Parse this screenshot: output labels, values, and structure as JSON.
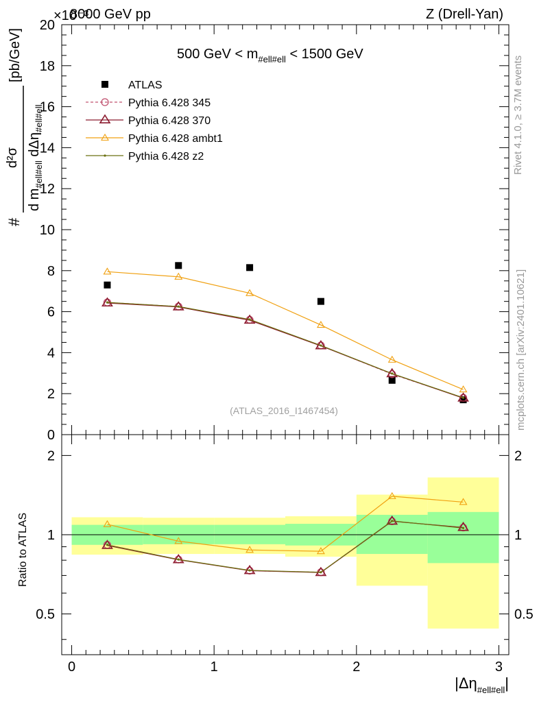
{
  "header": {
    "left": "8000 GeV pp",
    "exponent": "×10⁻³",
    "right": "Z (Drell-Yan)"
  },
  "side_labels": {
    "rivet": "Rivet 4.1.0, ≥ 3.7M events",
    "mcplots": "mcplots.cern.ch [arXiv:2401.10621]"
  },
  "main_panel": {
    "title_prefix": "500 GeV < m",
    "title_sub": "#ell#ell",
    "title_suffix": " < 1500 GeV",
    "watermark": "(ATLAS_2016_I1467454)",
    "ylabel_prefix": "#",
    "ylabel_suffix": "[pb/GeV]",
    "ylabel_num": "d²σ",
    "ylabel_den": "d m",
    "ylabel_den_sub": "#ell#ell",
    "ylabel_den_mid": " dΔη",
    "ylabel_den_sub2": "#ell#ell",
    "y_ticks": [
      "0",
      "2",
      "4",
      "6",
      "8",
      "10",
      "12",
      "14",
      "16",
      "18",
      "20"
    ]
  },
  "ratio_panel": {
    "ylabel": "Ratio to ATLAS",
    "y_ticks": [
      "0.5",
      "1",
      "2"
    ],
    "x_ticks": [
      "0",
      "1",
      "2",
      "3"
    ],
    "xlabel_main": "|Δη",
    "xlabel_sub": "#ell#ell",
    "xlabel_end": "|"
  },
  "legend": [
    {
      "label": "ATLAS"
    },
    {
      "label": "Pythia 6.428 345"
    },
    {
      "label": "Pythia 6.428 370"
    },
    {
      "label": "Pythia 6.428 ambt1"
    },
    {
      "label": "Pythia 6.428 z2"
    }
  ],
  "chart_data": {
    "type": "line",
    "x": [
      0.25,
      0.75,
      1.25,
      1.75,
      2.25,
      2.75
    ],
    "bin_edges": [
      0,
      0.5,
      1,
      1.5,
      2,
      2.5,
      3
    ],
    "xlim": [
      -0.07,
      3.07
    ],
    "ylim": [
      0,
      20
    ],
    "ratio_ylim": [
      0.35,
      2.4
    ],
    "series": [
      {
        "name": "ATLAS",
        "kind": "data",
        "color": "#000000",
        "values": [
          7.3,
          8.25,
          8.15,
          6.5,
          2.65,
          1.7
        ],
        "ratio_band_inner": [
          [
            0.915,
            1.09
          ],
          [
            0.92,
            1.09
          ],
          [
            0.92,
            1.09
          ],
          [
            0.91,
            1.1
          ],
          [
            0.845,
            1.19
          ],
          [
            0.78,
            1.22
          ]
        ],
        "ratio_band_outer": [
          [
            0.84,
            1.165
          ],
          [
            0.845,
            1.16
          ],
          [
            0.845,
            1.16
          ],
          [
            0.825,
            1.175
          ],
          [
            0.64,
            1.42
          ],
          [
            0.44,
            1.65
          ]
        ]
      },
      {
        "name": "Pythia 6.428 345",
        "kind": "mc",
        "color": "#c0506e",
        "marker": "circle",
        "dash": "4,3",
        "values": [
          6.45,
          6.25,
          5.6,
          4.35,
          2.95,
          1.8
        ],
        "ratio": [
          0.915,
          0.805,
          0.73,
          0.72,
          1.125,
          1.065
        ]
      },
      {
        "name": "Pythia 6.428 370",
        "kind": "mc",
        "color": "#8b1a2e",
        "marker": "triangle",
        "values": [
          6.42,
          6.23,
          5.58,
          4.33,
          2.97,
          1.78
        ],
        "ratio": [
          0.91,
          0.803,
          0.73,
          0.718,
          1.125,
          1.065
        ]
      },
      {
        "name": "Pythia 6.428 ambt1",
        "kind": "mc",
        "color": "#f0a010",
        "marker": "triangle-open",
        "values": [
          7.95,
          7.7,
          6.9,
          5.35,
          3.65,
          2.2
        ],
        "ratio": [
          1.095,
          0.945,
          0.875,
          0.865,
          1.4,
          1.33
        ]
      },
      {
        "name": "Pythia 6.428 z2",
        "kind": "mc",
        "color": "#6b7010",
        "marker": "dot",
        "values": [
          6.45,
          6.25,
          5.62,
          4.35,
          2.98,
          1.8
        ],
        "ratio": [
          0.915,
          0.805,
          0.732,
          0.72,
          1.128,
          1.06
        ]
      }
    ]
  }
}
